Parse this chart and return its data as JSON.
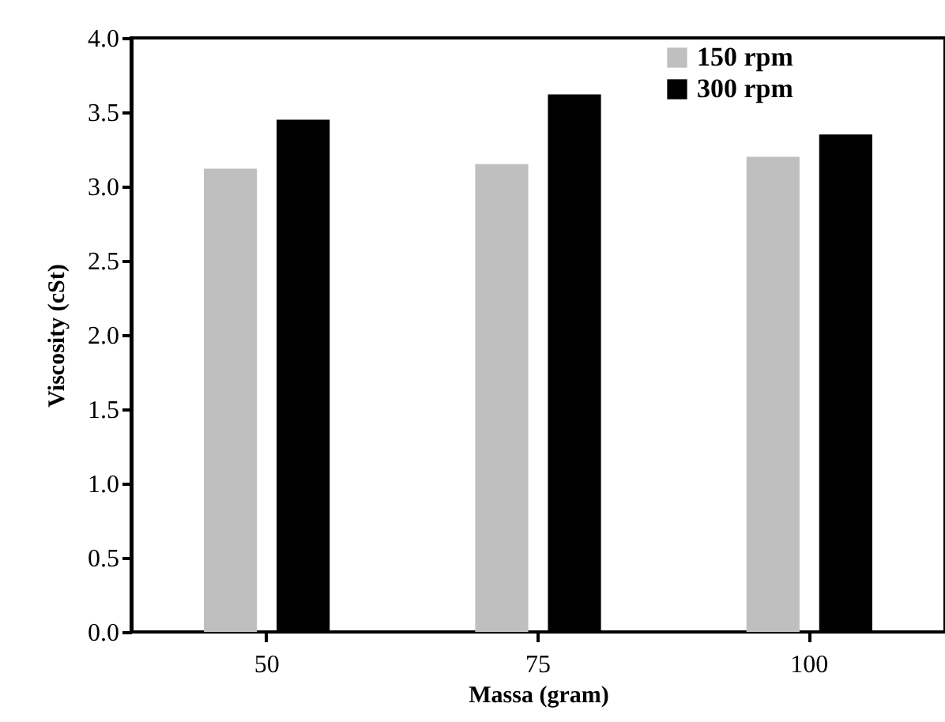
{
  "chart_data": {
    "type": "bar",
    "xlabel": "Massa (gram)",
    "ylabel": "Viscosity (cSt)",
    "categories": [
      "50",
      "75",
      "100"
    ],
    "series": [
      {
        "name": "150 rpm",
        "color": "#bfbfbf",
        "values": [
          3.12,
          3.15,
          3.2
        ]
      },
      {
        "name": "300 rpm",
        "color": "#000000",
        "values": [
          3.45,
          3.62,
          3.35
        ]
      }
    ],
    "ylim": [
      0,
      4
    ],
    "yticks": [
      {
        "value": 0,
        "label": "0.0"
      },
      0.5,
      {
        "value": 1,
        "label": "1.0"
      },
      1.5,
      {
        "value": 2,
        "label": "2.0"
      },
      2.5,
      {
        "value": 3,
        "label": "3.0"
      },
      3.5,
      {
        "value": 4,
        "label": "4.0"
      }
    ],
    "grid": false,
    "legend": "top right"
  }
}
